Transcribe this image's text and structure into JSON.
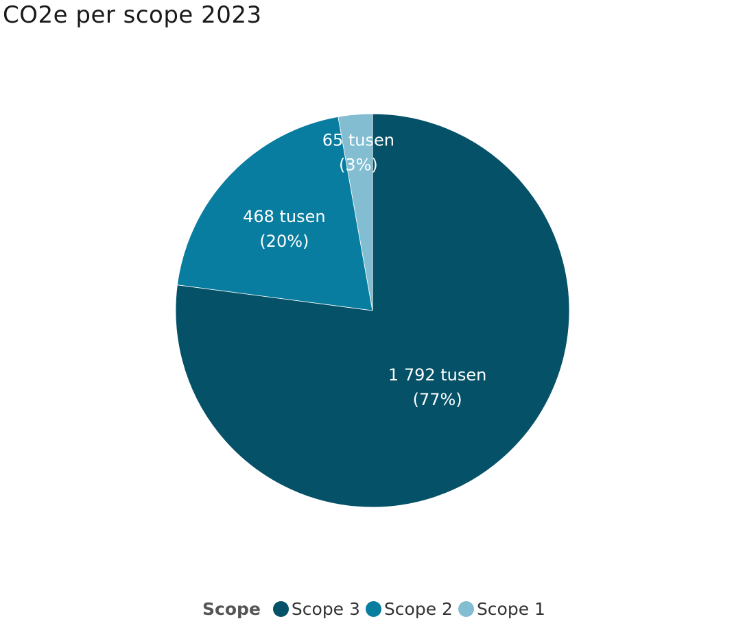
{
  "title": "CO2e per scope 2023",
  "legend": {
    "title": "Scope",
    "items": [
      {
        "label": "Scope 3",
        "color": "#055168"
      },
      {
        "label": "Scope 2",
        "color": "#087da0"
      },
      {
        "label": "Scope 1",
        "color": "#82bdd1"
      }
    ]
  },
  "slices": [
    {
      "name": "Scope 3",
      "value_label": "1 792 tusen",
      "pct_label": "(77%)"
    },
    {
      "name": "Scope 2",
      "value_label": "468 tusen",
      "pct_label": "(20%)"
    },
    {
      "name": "Scope 1",
      "value_label": "65 tusen",
      "pct_label": "(3%)"
    }
  ],
  "chart_data": {
    "type": "pie",
    "title": "CO2e per scope 2023",
    "legend_title": "Scope",
    "legend_position": "bottom",
    "categories": [
      "Scope 3",
      "Scope 2",
      "Scope 1"
    ],
    "values": [
      1792,
      468,
      65
    ],
    "units": "tusen",
    "percentages": [
      77,
      20,
      3
    ],
    "data_labels": [
      "1 792 tusen (77%)",
      "468 tusen (20%)",
      "65 tusen (3%)"
    ],
    "colors": [
      "#055168",
      "#087da0",
      "#82bdd1"
    ],
    "start_angle": "12 o'clock",
    "direction": "clockwise"
  }
}
